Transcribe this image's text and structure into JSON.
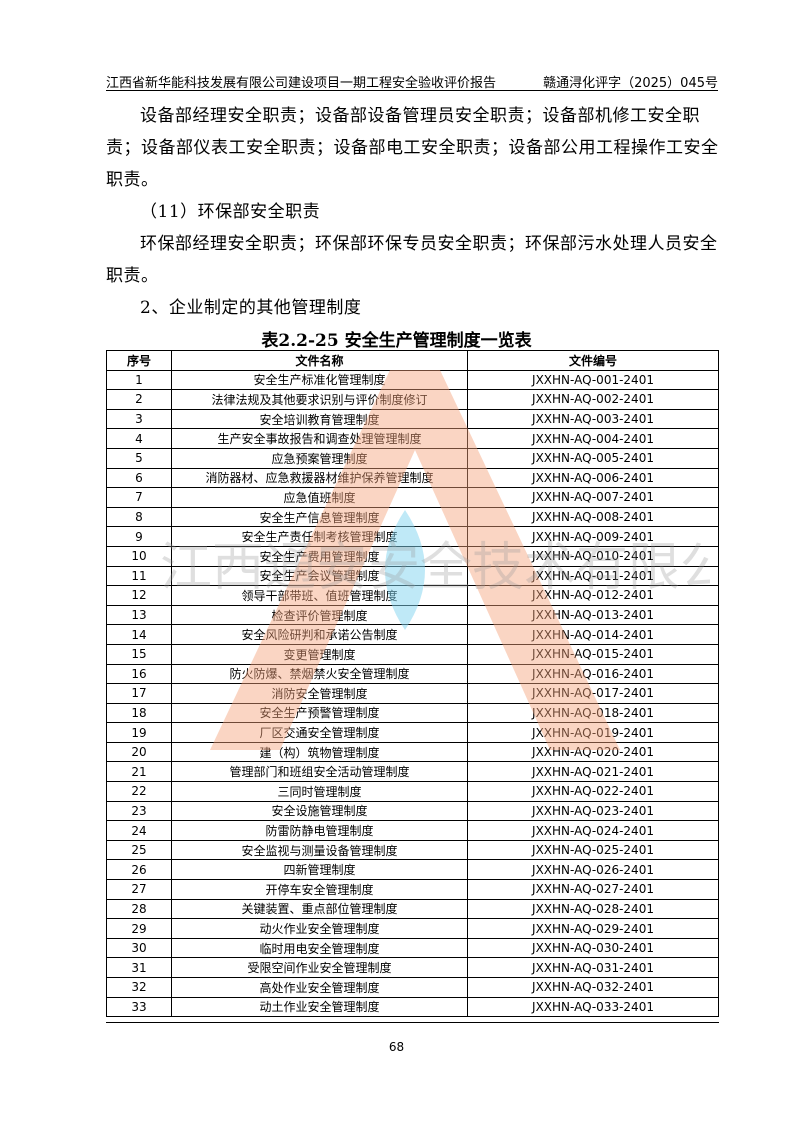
{
  "header": {
    "title": "江西省新华能科技发展有限公司建设项目一期工程安全验收评价报告",
    "doc_no": "赣通浔化评字（2025）045号"
  },
  "paragraphs": [
    "设备部经理安全职责；设备部设备管理员安全职责；设备部机修工安全职责；设备部仪表工安全职责；设备部电工安全职责；设备部公用工程操作工安全职责。",
    "（11）环保部安全职责",
    "环保部经理安全职责；环保部环保专员安全职责；环保部污水处理人员安全职责。",
    "2、企业制定的其他管理制度"
  ],
  "table": {
    "caption": "表2.2-25 安全生产管理制度一览表",
    "headers": [
      "序号",
      "文件名称",
      "文件编号"
    ],
    "rows": [
      [
        "1",
        "安全生产标准化管理制度",
        "JXXHN-AQ-001-2401"
      ],
      [
        "2",
        "法律法规及其他要求识别与评价制度修订",
        "JXXHN-AQ-002-2401"
      ],
      [
        "3",
        "安全培训教育管理制度",
        "JXXHN-AQ-003-2401"
      ],
      [
        "4",
        "生产安全事故报告和调查处理管理制度",
        "JXXHN-AQ-004-2401"
      ],
      [
        "5",
        "应急预案管理制度",
        "JXXHN-AQ-005-2401"
      ],
      [
        "6",
        "消防器材、应急救援器材维护保养管理制度",
        "JXXHN-AQ-006-2401"
      ],
      [
        "7",
        "应急值班制度",
        "JXXHN-AQ-007-2401"
      ],
      [
        "8",
        "安全生产信息管理制度",
        "JXXHN-AQ-008-2401"
      ],
      [
        "9",
        "安全生产责任制考核管理制度",
        "JXXHN-AQ-009-2401"
      ],
      [
        "10",
        "安全生产费用管理制度",
        "JXXHN-AQ-010-2401"
      ],
      [
        "11",
        "安全生产会议管理制度",
        "JXXHN-AQ-011-2401"
      ],
      [
        "12",
        "领导干部带班、值班管理制度",
        "JXXHN-AQ-012-2401"
      ],
      [
        "13",
        "检查评价管理制度",
        "JXXHN-AQ-013-2401"
      ],
      [
        "14",
        "安全风险研判和承诺公告制度",
        "JXXHN-AQ-014-2401"
      ],
      [
        "15",
        "变更管理制度",
        "JXXHN-AQ-015-2401"
      ],
      [
        "16",
        "防火防爆、禁烟禁火安全管理制度",
        "JXXHN-AQ-016-2401"
      ],
      [
        "17",
        "消防安全管理制度",
        "JXXHN-AQ-017-2401"
      ],
      [
        "18",
        "安全生产预警管理制度",
        "JXXHN-AQ-018-2401"
      ],
      [
        "19",
        "厂区交通安全管理制度",
        "JXXHN-AQ-019-2401"
      ],
      [
        "20",
        "建（构）筑物管理制度",
        "JXXHN-AQ-020-2401"
      ],
      [
        "21",
        "管理部门和班组安全活动管理制度",
        "JXXHN-AQ-021-2401"
      ],
      [
        "22",
        "三同时管理制度",
        "JXXHN-AQ-022-2401"
      ],
      [
        "23",
        "安全设施管理制度",
        "JXXHN-AQ-023-2401"
      ],
      [
        "24",
        "防雷防静电管理制度",
        "JXXHN-AQ-024-2401"
      ],
      [
        "25",
        "安全监视与测量设备管理制度",
        "JXXHN-AQ-025-2401"
      ],
      [
        "26",
        "四新管理制度",
        "JXXHN-AQ-026-2401"
      ],
      [
        "27",
        "开停车安全管理制度",
        "JXXHN-AQ-027-2401"
      ],
      [
        "28",
        "关键装置、重点部位管理制度",
        "JXXHN-AQ-028-2401"
      ],
      [
        "29",
        "动火作业安全管理制度",
        "JXXHN-AQ-029-2401"
      ],
      [
        "30",
        "临时用电安全管理制度",
        "JXXHN-AQ-030-2401"
      ],
      [
        "31",
        "受限空间作业安全管理制度",
        "JXXHN-AQ-031-2401"
      ],
      [
        "32",
        "高处作业安全管理制度",
        "JXXHN-AQ-032-2401"
      ],
      [
        "33",
        "动土作业安全管理制度",
        "JXXHN-AQ-033-2401"
      ]
    ]
  },
  "page_number": "68",
  "watermark": {
    "text": "江西通安安全技术有限公司",
    "colors": {
      "orange": "#f5a27a",
      "cyan": "#7fd3ef"
    }
  }
}
